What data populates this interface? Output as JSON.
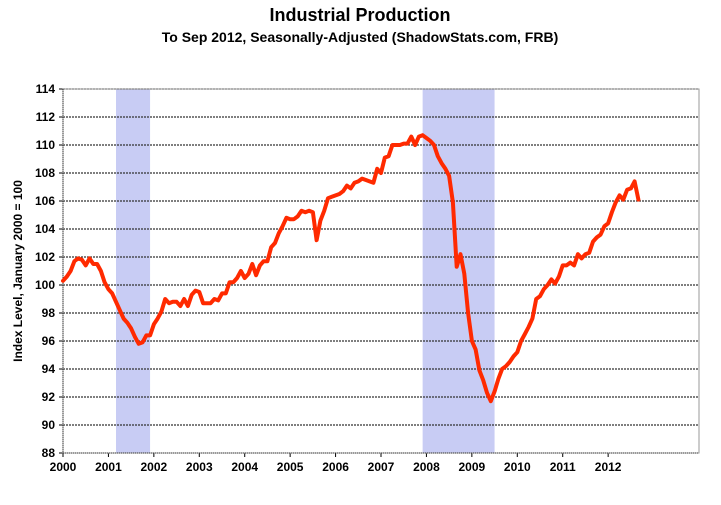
{
  "chart_data": {
    "type": "line",
    "title": "Industrial Production",
    "subtitle": "To Sep 2012, Seasonally-Adjusted (ShadowStats.com, FRB)",
    "xlabel": "",
    "ylabel": "Index Level, January 2000 = 100",
    "ylim": [
      88,
      114
    ],
    "yticks": [
      "88",
      "90",
      "92",
      "94",
      "96",
      "98",
      "100",
      "102",
      "104",
      "106",
      "108",
      "110",
      "112",
      "114"
    ],
    "xticks": [
      "2000",
      "2001",
      "2002",
      "2003",
      "2004",
      "2005",
      "2006",
      "2007",
      "2008",
      "2009",
      "2010",
      "2011",
      "2012"
    ],
    "xstart_year": 2000,
    "grid": true,
    "recessions": [
      {
        "start": "2001-03",
        "end": "2001-11"
      },
      {
        "start": "2007-12",
        "end": "2009-06"
      }
    ],
    "colors": {
      "line": "#ff2a00",
      "recession": "#c8ccf4",
      "grid": "#333333"
    },
    "series": [
      {
        "name": "Industrial Production",
        "start": "2000-01",
        "frequency": "monthly",
        "values": [
          100.3,
          100.6,
          101.0,
          101.7,
          101.9,
          101.8,
          101.4,
          101.9,
          101.5,
          101.5,
          101.0,
          100.2,
          99.7,
          99.4,
          98.8,
          98.2,
          97.6,
          97.3,
          96.9,
          96.3,
          95.8,
          95.9,
          96.4,
          96.4,
          97.2,
          97.6,
          98.1,
          99.0,
          98.7,
          98.8,
          98.8,
          98.5,
          99.0,
          98.5,
          99.3,
          99.6,
          99.5,
          98.7,
          98.7,
          98.7,
          99.0,
          98.9,
          99.4,
          99.4,
          100.2,
          100.2,
          100.5,
          101.0,
          100.5,
          100.8,
          101.5,
          100.7,
          101.4,
          101.7,
          101.7,
          102.7,
          103.0,
          103.7,
          104.2,
          104.8,
          104.7,
          104.7,
          104.9,
          105.3,
          105.2,
          105.3,
          105.2,
          103.2,
          104.6,
          105.3,
          106.2,
          106.3,
          106.4,
          106.5,
          106.7,
          107.1,
          106.9,
          107.3,
          107.4,
          107.6,
          107.5,
          107.4,
          107.3,
          108.3,
          108.0,
          109.1,
          109.2,
          110.0,
          110.0,
          110.0,
          110.1,
          110.1,
          110.6,
          110.0,
          110.6,
          110.7,
          110.5,
          110.3,
          110.0,
          109.2,
          108.7,
          108.3,
          107.8,
          105.9,
          101.3,
          102.2,
          100.8,
          98.0,
          96.0,
          95.4,
          93.9,
          93.2,
          92.3,
          91.7,
          92.4,
          93.3,
          94.0,
          94.2,
          94.5,
          94.9,
          95.2,
          96.0,
          96.5,
          97.0,
          97.6,
          99.0,
          99.2,
          99.7,
          100.0,
          100.4,
          100.1,
          100.6,
          101.4,
          101.4,
          101.6,
          101.4,
          102.2,
          101.9,
          102.2,
          102.3,
          103.1,
          103.4,
          103.6,
          104.2,
          104.4,
          105.2,
          105.9,
          106.4,
          106.1,
          106.8,
          106.9,
          107.4,
          106.1
        ]
      }
    ]
  }
}
